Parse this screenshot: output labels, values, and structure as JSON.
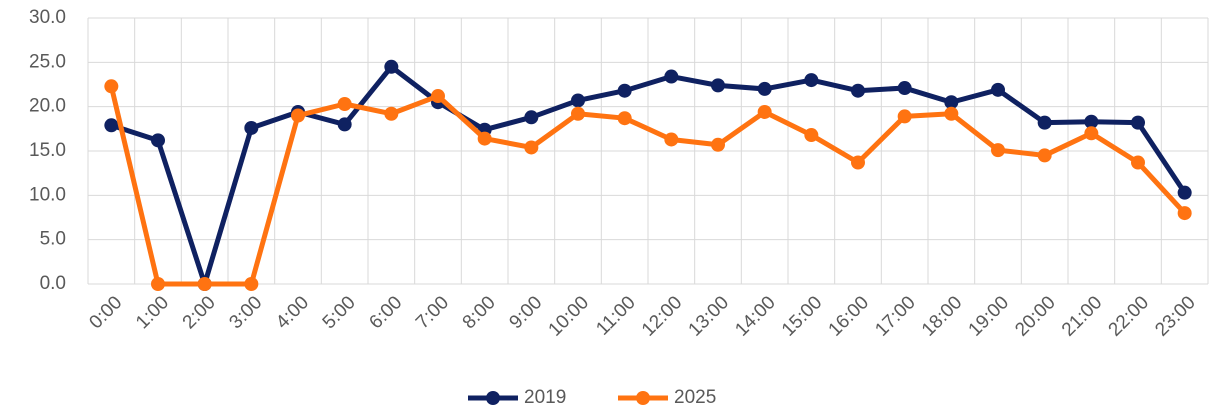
{
  "chart_data": {
    "type": "line",
    "categories": [
      "0:00",
      "1:00",
      "2:00",
      "3:00",
      "4:00",
      "5:00",
      "6:00",
      "7:00",
      "8:00",
      "9:00",
      "10:00",
      "11:00",
      "12:00",
      "13:00",
      "14:00",
      "15:00",
      "16:00",
      "17:00",
      "18:00",
      "19:00",
      "20:00",
      "21:00",
      "22:00",
      "23:00"
    ],
    "series": [
      {
        "name": "2019",
        "color": "#0f2161",
        "values": [
          17.9,
          16.2,
          0,
          17.6,
          19.4,
          18.0,
          24.5,
          20.5,
          17.4,
          18.8,
          20.7,
          21.8,
          23.4,
          22.4,
          22.0,
          23.0,
          21.8,
          22.1,
          20.5,
          21.9,
          18.2,
          18.3,
          18.2,
          10.3
        ]
      },
      {
        "name": "2025",
        "color": "#ff7311",
        "values": [
          22.3,
          0,
          0,
          0,
          19.0,
          20.3,
          19.2,
          21.2,
          16.4,
          15.4,
          19.2,
          18.7,
          16.3,
          15.7,
          19.4,
          16.8,
          13.7,
          18.9,
          19.2,
          15.1,
          14.5,
          17.0,
          13.7,
          8.0
        ]
      }
    ],
    "ylim": [
      0,
      30
    ],
    "yticks": [
      {
        "value": 0,
        "label": "0.0"
      },
      {
        "value": 5,
        "label": "5.0"
      },
      {
        "value": 10,
        "label": "10.0"
      },
      {
        "value": 15,
        "label": "15.0"
      },
      {
        "value": 20,
        "label": "20.0"
      },
      {
        "value": 25,
        "label": "25.0"
      },
      {
        "value": 30,
        "label": "30.0"
      }
    ],
    "grid": true,
    "legend": "bottom"
  }
}
